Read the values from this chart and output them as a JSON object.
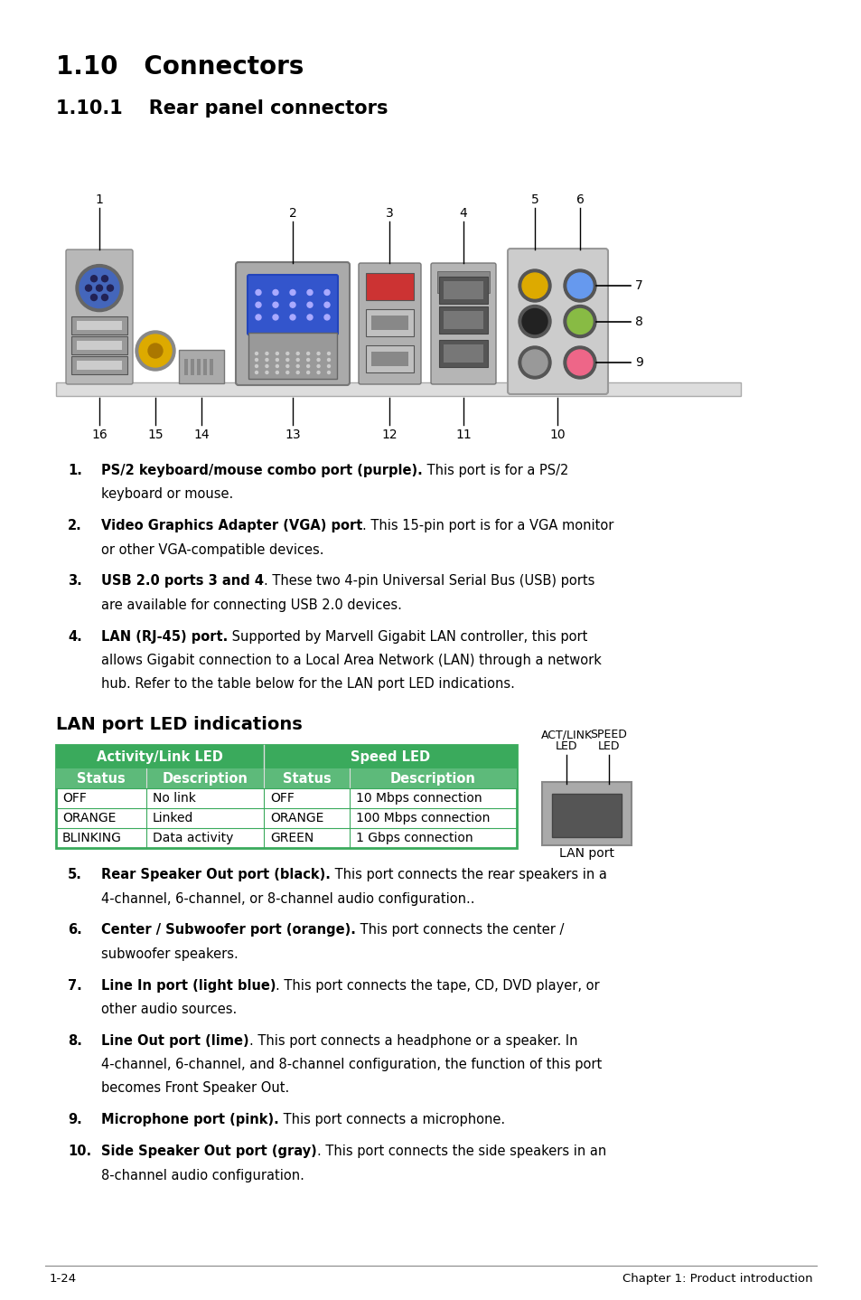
{
  "bg_color": "#ffffff",
  "title": "1.10   Connectors",
  "subtitle": "1.10.1    Rear panel connectors",
  "title_fs": 20,
  "subtitle_fs": 15,
  "body_fs": 10.5,
  "items_1_4": [
    {
      "num": "1.",
      "bold": "PS/2 keyboard/mouse combo port (purple).",
      "normal": " This port is for a PS/2\nkeyboard or mouse."
    },
    {
      "num": "2.",
      "bold": "Video Graphics Adapter (VGA) port",
      "normal": ". This 15-pin port is for a VGA monitor\nor other VGA-compatible devices."
    },
    {
      "num": "3.",
      "bold": "USB 2.0 ports 3 and 4",
      "normal": ". These two 4-pin Universal Serial Bus (USB) ports\nare available for connecting USB 2.0 devices."
    },
    {
      "num": "4.",
      "bold": "LAN (RJ-45) port.",
      "normal": " Supported by Marvell Gigabit LAN controller, this port\nallows Gigabit connection to a Local Area Network (LAN) through a network\nhub. Refer to the table below for the LAN port LED indications."
    }
  ],
  "lan_section_title": "LAN port LED indications",
  "lan_col_headers": [
    "Activity/Link LED",
    "Speed LED"
  ],
  "lan_sub_headers": [
    "Status",
    "Description",
    "Status",
    "Description"
  ],
  "lan_rows": [
    [
      "OFF",
      "No link",
      "OFF",
      "10 Mbps connection"
    ],
    [
      "ORANGE",
      "Linked",
      "ORANGE",
      "100 Mbps connection"
    ],
    [
      "BLINKING",
      "Data activity",
      "GREEN",
      "1 Gbps connection"
    ]
  ],
  "table_green_dark": "#3aaa5c",
  "table_green_light": "#5dba7a",
  "items_5_10": [
    {
      "num": "5.",
      "bold": "Rear Speaker Out port (black).",
      "normal": " This port connects the rear speakers in a\n4-channel, 6-channel, or 8-channel audio configuration.."
    },
    {
      "num": "6.",
      "bold": "Center / Subwoofer port (orange).",
      "normal": " This port connects the center /\nsubwoofer speakers."
    },
    {
      "num": "7.",
      "bold": "Line In port (light blue)",
      "normal": ". This port connects the tape, CD, DVD player, or\nother audio sources."
    },
    {
      "num": "8.",
      "bold": "Line Out port (lime)",
      "normal": ". This port connects a headphone or a speaker. In\n4-channel, 6-channel, and 8-channel configuration, the function of this port\nbecomes Front Speaker Out."
    },
    {
      "num": "9.",
      "bold": "Microphone port (pink).",
      "normal": " This port connects a microphone."
    },
    {
      "num": "10.",
      "bold": "Side Speaker Out port (gray)",
      "normal": ". This port connects the side speakers in an\n8-channel audio configuration."
    }
  ],
  "footer_left": "1-24",
  "footer_right": "Chapter 1: Product introduction"
}
